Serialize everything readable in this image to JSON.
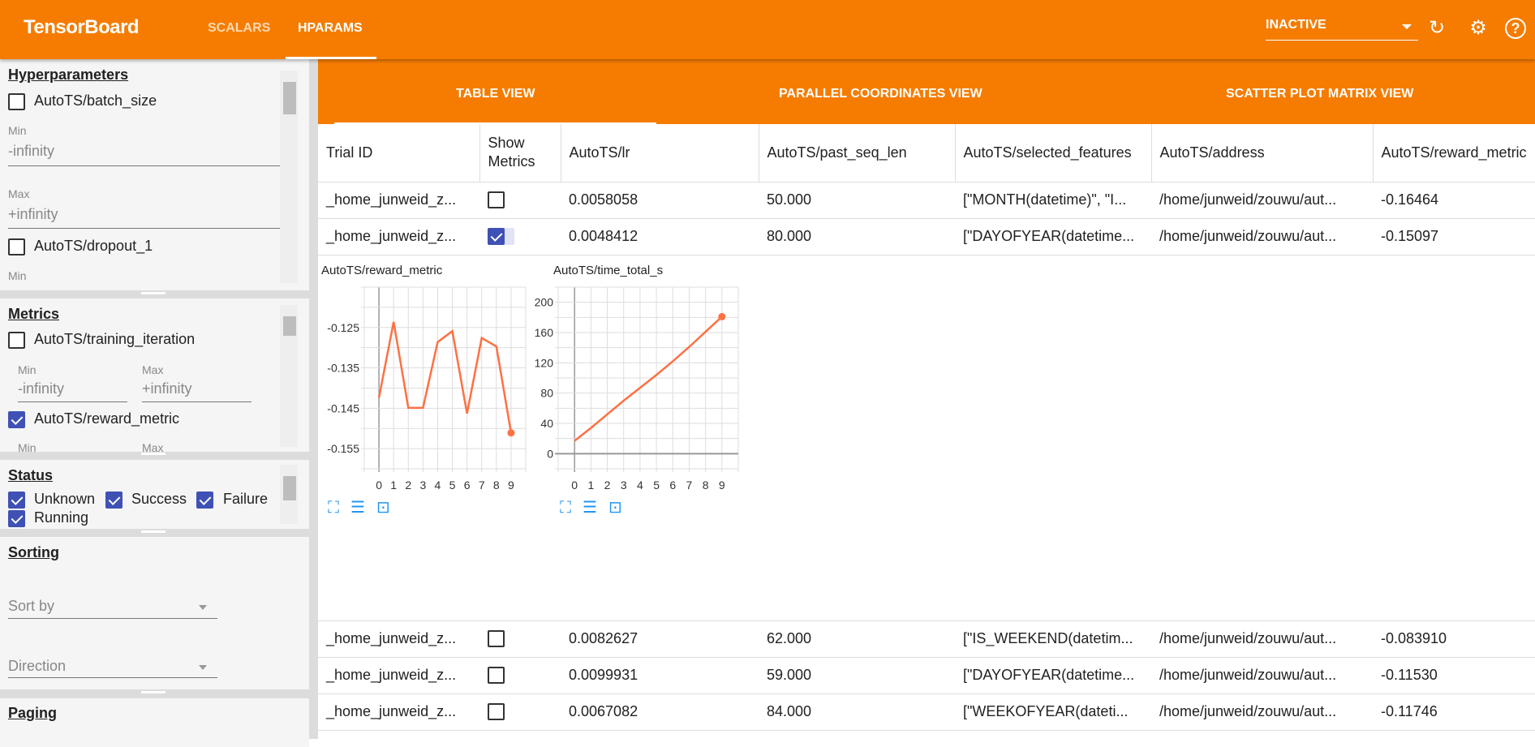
{
  "header": {
    "title": "TensorBoard",
    "tabs": [
      "SCALARS",
      "HPARAMS"
    ],
    "active_tab": "HPARAMS",
    "run_status": "INACTIVE",
    "icons": [
      "refresh-icon",
      "settings-icon",
      "help-icon"
    ]
  },
  "sidebar": {
    "hyperparameters": {
      "title": "Hyperparameters",
      "items": [
        {
          "label": "AutoTS/batch_size",
          "checked": false,
          "min_label": "Min",
          "min": "-infinity",
          "max_label": "Max",
          "max": "+infinity"
        },
        {
          "label": "AutoTS/dropout_1",
          "checked": false,
          "min_label": "Min"
        }
      ]
    },
    "metrics": {
      "title": "Metrics",
      "items": [
        {
          "label": "AutoTS/training_iteration",
          "checked": false,
          "min_label": "Min",
          "min": "-infinity",
          "max_label": "Max",
          "max": "+infinity"
        },
        {
          "label": "AutoTS/reward_metric",
          "checked": true,
          "min_label": "Min",
          "max_label": "Max"
        }
      ]
    },
    "status": {
      "title": "Status",
      "items": [
        {
          "label": "Unknown",
          "checked": true
        },
        {
          "label": "Success",
          "checked": true
        },
        {
          "label": "Failure",
          "checked": true
        },
        {
          "label": "Running",
          "checked": true
        }
      ]
    },
    "sorting": {
      "title": "Sorting",
      "sort_by": "Sort by",
      "direction": "Direction"
    },
    "paging": {
      "title": "Paging"
    }
  },
  "views": {
    "tabs": [
      "TABLE VIEW",
      "PARALLEL COORDINATES VIEW",
      "SCATTER PLOT MATRIX VIEW"
    ],
    "active": "TABLE VIEW"
  },
  "table": {
    "columns": [
      "Trial ID",
      "Show Metrics",
      "AutoTS/lr",
      "AutoTS/past_seq_len",
      "AutoTS/selected_features",
      "AutoTS/address",
      "AutoTS/reward_metric"
    ],
    "rows": [
      {
        "trial": "_home_junweid_z...",
        "show": false,
        "lr": "0.0058058",
        "past_seq_len": "50.000",
        "features": "[\"MONTH(datetime)\", \"I...",
        "address": "/home/junweid/zouwu/aut...",
        "reward": "-0.16464"
      },
      {
        "trial": "_home_junweid_z...",
        "show": true,
        "lr": "0.0048412",
        "past_seq_len": "80.000",
        "features": "[\"DAYOFYEAR(datetime...",
        "address": "/home/junweid/zouwu/aut...",
        "reward": "-0.15097"
      },
      {
        "trial": "_home_junweid_z...",
        "show": false,
        "lr": "0.0082627",
        "past_seq_len": "62.000",
        "features": "[\"IS_WEEKEND(datetim...",
        "address": "/home/junweid/zouwu/aut...",
        "reward": "-0.083910"
      },
      {
        "trial": "_home_junweid_z...",
        "show": false,
        "lr": "0.0099931",
        "past_seq_len": "59.000",
        "features": "[\"DAYOFYEAR(datetime...",
        "address": "/home/junweid/zouwu/aut...",
        "reward": "-0.11530"
      },
      {
        "trial": "_home_junweid_z...",
        "show": false,
        "lr": "0.0067082",
        "past_seq_len": "84.000",
        "features": "[\"WEEKOFYEAR(dateti...",
        "address": "/home/junweid/zouwu/aut...",
        "reward": "-0.11746"
      }
    ]
  },
  "colors": {
    "brand": "#f57c00",
    "line": "#ff7043",
    "checkbox": "#3f51b5",
    "chart_icons": "#2196f3"
  },
  "chart_data": [
    {
      "type": "line",
      "title": "AutoTS/reward_metric",
      "x": [
        0,
        1,
        2,
        3,
        4,
        5,
        6,
        7,
        8,
        9
      ],
      "values": [
        -0.1424,
        -0.1236,
        -0.1449,
        -0.1449,
        -0.1286,
        -0.1259,
        -0.1463,
        -0.1276,
        -0.1297,
        -0.1511
      ],
      "yticks": [
        "-0.125",
        "-0.135",
        "-0.145",
        "-0.155"
      ],
      "xticks": [
        "0",
        "1",
        "2",
        "3",
        "4",
        "5",
        "6",
        "7",
        "8",
        "9"
      ],
      "xlim": [
        -1,
        10
      ],
      "ylim": [
        -0.16,
        -0.115
      ],
      "grid": true,
      "icons": [
        "fullscreen-icon",
        "data-table-icon",
        "fit-domain-icon"
      ]
    },
    {
      "type": "line",
      "title": "AutoTS/time_total_s",
      "x": [
        0,
        1,
        2,
        3,
        4,
        5,
        6,
        7,
        8,
        9
      ],
      "values": [
        17,
        34,
        52,
        70,
        87,
        104,
        122,
        141,
        161,
        181
      ],
      "yticks": [
        "0",
        "40",
        "80",
        "120",
        "160",
        "200"
      ],
      "xticks": [
        "0",
        "1",
        "2",
        "3",
        "4",
        "5",
        "6",
        "7",
        "8",
        "9"
      ],
      "xlim": [
        -1,
        10
      ],
      "ylim": [
        -20,
        220
      ],
      "grid": true,
      "icons": [
        "fullscreen-icon",
        "data-table-icon",
        "fit-domain-icon"
      ]
    }
  ]
}
